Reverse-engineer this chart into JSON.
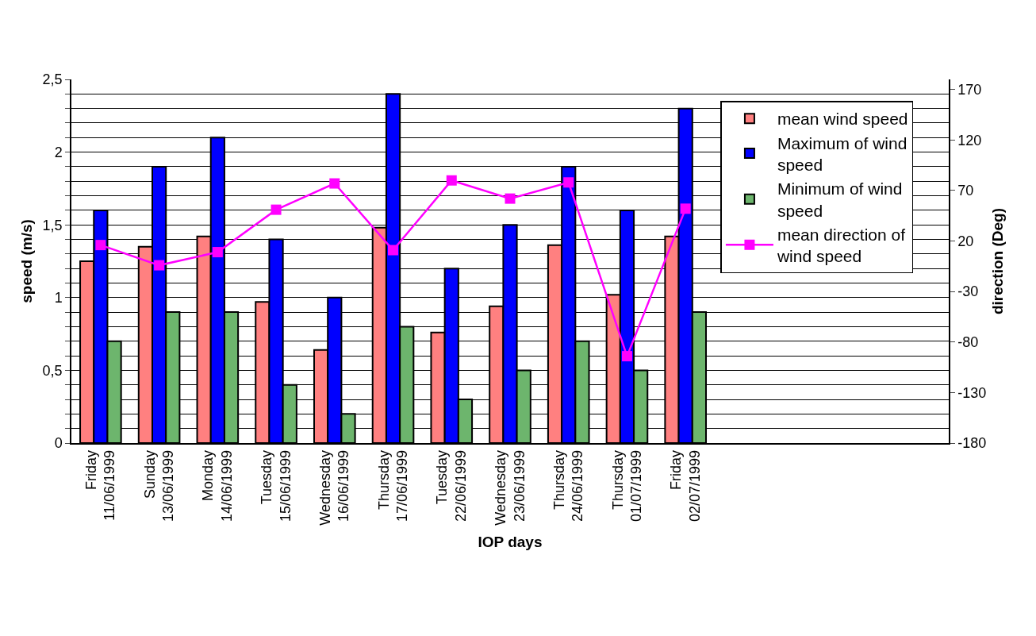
{
  "chart_data": {
    "type": "bar",
    "xlabel": "IOP days",
    "ylabel": "speed (m/s)",
    "y2label": "direction (Deg)",
    "categories": [
      "Friday\n11/06/1999",
      "Sunday\n13/06/1999",
      "Monday\n14/06/1999",
      "Tuesday\n15/06/1999",
      "Wednesday\n16/06/1999",
      "Thursday\n17/06/1999",
      "Tuesday\n22/06/1999",
      "Wednesday\n23/06/1999",
      "Thursday\n24/06/1999",
      "Thursday\n01/07/1999",
      "Friday\n02/07/1999",
      null,
      null,
      null,
      null
    ],
    "series": [
      {
        "name": "mean wind speed",
        "color": "#ff8080",
        "values": [
          1.25,
          1.35,
          1.42,
          0.97,
          0.64,
          1.48,
          0.76,
          0.94,
          1.36,
          1.02,
          1.42,
          null,
          null,
          null,
          null
        ]
      },
      {
        "name": "Maximum of wind speed",
        "color": "#0000ff",
        "values": [
          1.6,
          1.9,
          2.1,
          1.4,
          1.0,
          2.4,
          1.2,
          1.5,
          1.9,
          1.6,
          2.3,
          null,
          null,
          null,
          null
        ]
      },
      {
        "name": "Minimum of wind speed",
        "color": "#6db56d",
        "values": [
          0.7,
          0.9,
          0.9,
          0.4,
          0.2,
          0.8,
          0.3,
          0.5,
          0.7,
          0.5,
          0.9,
          null,
          null,
          null,
          null
        ]
      },
      {
        "name": "mean direction of wind speed",
        "color": "#ff00ff",
        "type": "line",
        "axis": "y2",
        "marker": "square",
        "values": [
          16,
          -4,
          9,
          51,
          77,
          11,
          80,
          62,
          78,
          -94,
          52,
          null,
          null,
          null,
          null
        ]
      }
    ],
    "ylim": [
      0,
      2.5
    ],
    "yticks": [
      0,
      {
        "value": 0.1,
        "label": null
      },
      {
        "value": 0.2,
        "label": null
      },
      {
        "value": 0.3,
        "label": null
      },
      {
        "value": 0.4,
        "label": null
      },
      {
        "value": 0.5,
        "label": "0,5"
      },
      {
        "value": 0.6,
        "label": null
      },
      {
        "value": 0.7,
        "label": null
      },
      {
        "value": 0.8,
        "label": null
      },
      {
        "value": 0.9,
        "label": null
      },
      1,
      {
        "value": 1.1,
        "label": null
      },
      {
        "value": 1.2,
        "label": null
      },
      {
        "value": 1.3,
        "label": null
      },
      {
        "value": 1.4,
        "label": null
      },
      {
        "value": 1.5,
        "label": "1,5"
      },
      {
        "value": 1.6,
        "label": null
      },
      {
        "value": 1.7,
        "label": null
      },
      {
        "value": 1.8,
        "label": null
      },
      {
        "value": 1.9,
        "label": null
      },
      2,
      {
        "value": 2.1,
        "label": null
      },
      {
        "value": 2.2,
        "label": null
      },
      {
        "value": 2.3,
        "label": null
      },
      {
        "value": 2.4,
        "label": null
      },
      {
        "value": 2.5,
        "label": "2,5"
      }
    ],
    "y2lim": [
      -180,
      180
    ],
    "y2ticks": [
      -180,
      -130,
      -80,
      -30,
      20,
      70,
      120,
      170
    ],
    "grid": "y",
    "legend": "right"
  }
}
